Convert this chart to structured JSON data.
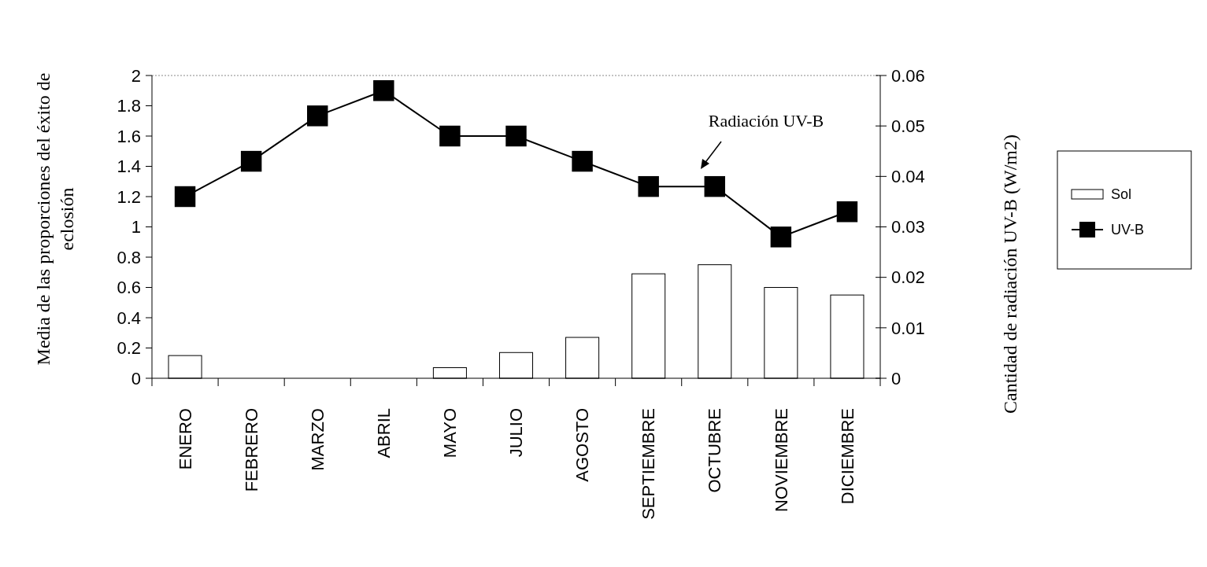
{
  "chart_data": {
    "type": "bar",
    "ylabel": "Media de las proporciones del éxito de eclosión",
    "y2label": "Cantidad de radiación UV-B (W/m2)",
    "categories": [
      "ENERO",
      "FEBRERO",
      "MARZO",
      "ABRIL",
      "MAYO",
      "JULIO",
      "AGOSTO",
      "SEPTIEMBRE",
      "OCTUBRE",
      "NOVIEMBRE",
      "DICIEMBRE"
    ],
    "series": [
      {
        "name": "Sol",
        "color": "#ffffff",
        "values": [
          0.15,
          0,
          0,
          0,
          0.07,
          0.17,
          0.27,
          0.69,
          0.75,
          0.6,
          0.55
        ]
      },
      {
        "name": "UV-B",
        "type": "line",
        "axis": "y2",
        "color": "#000000",
        "marker": "square",
        "values": [
          0.036,
          0.043,
          0.052,
          0.057,
          0.048,
          0.048,
          0.043,
          0.038,
          0.038,
          0.028,
          0.033
        ]
      }
    ],
    "ylim": [
      0,
      2
    ],
    "yticks": [
      0,
      0.2,
      0.4,
      0.6,
      0.8,
      1,
      1.2,
      1.4,
      1.6,
      1.8,
      2
    ],
    "y2lim": [
      0,
      0.06
    ],
    "y2ticks": [
      0,
      0.01,
      0.02,
      0.03,
      0.04,
      0.05,
      0.06
    ],
    "annotations": [
      "Radiación UV-B"
    ],
    "legend": "right",
    "grid": false
  }
}
